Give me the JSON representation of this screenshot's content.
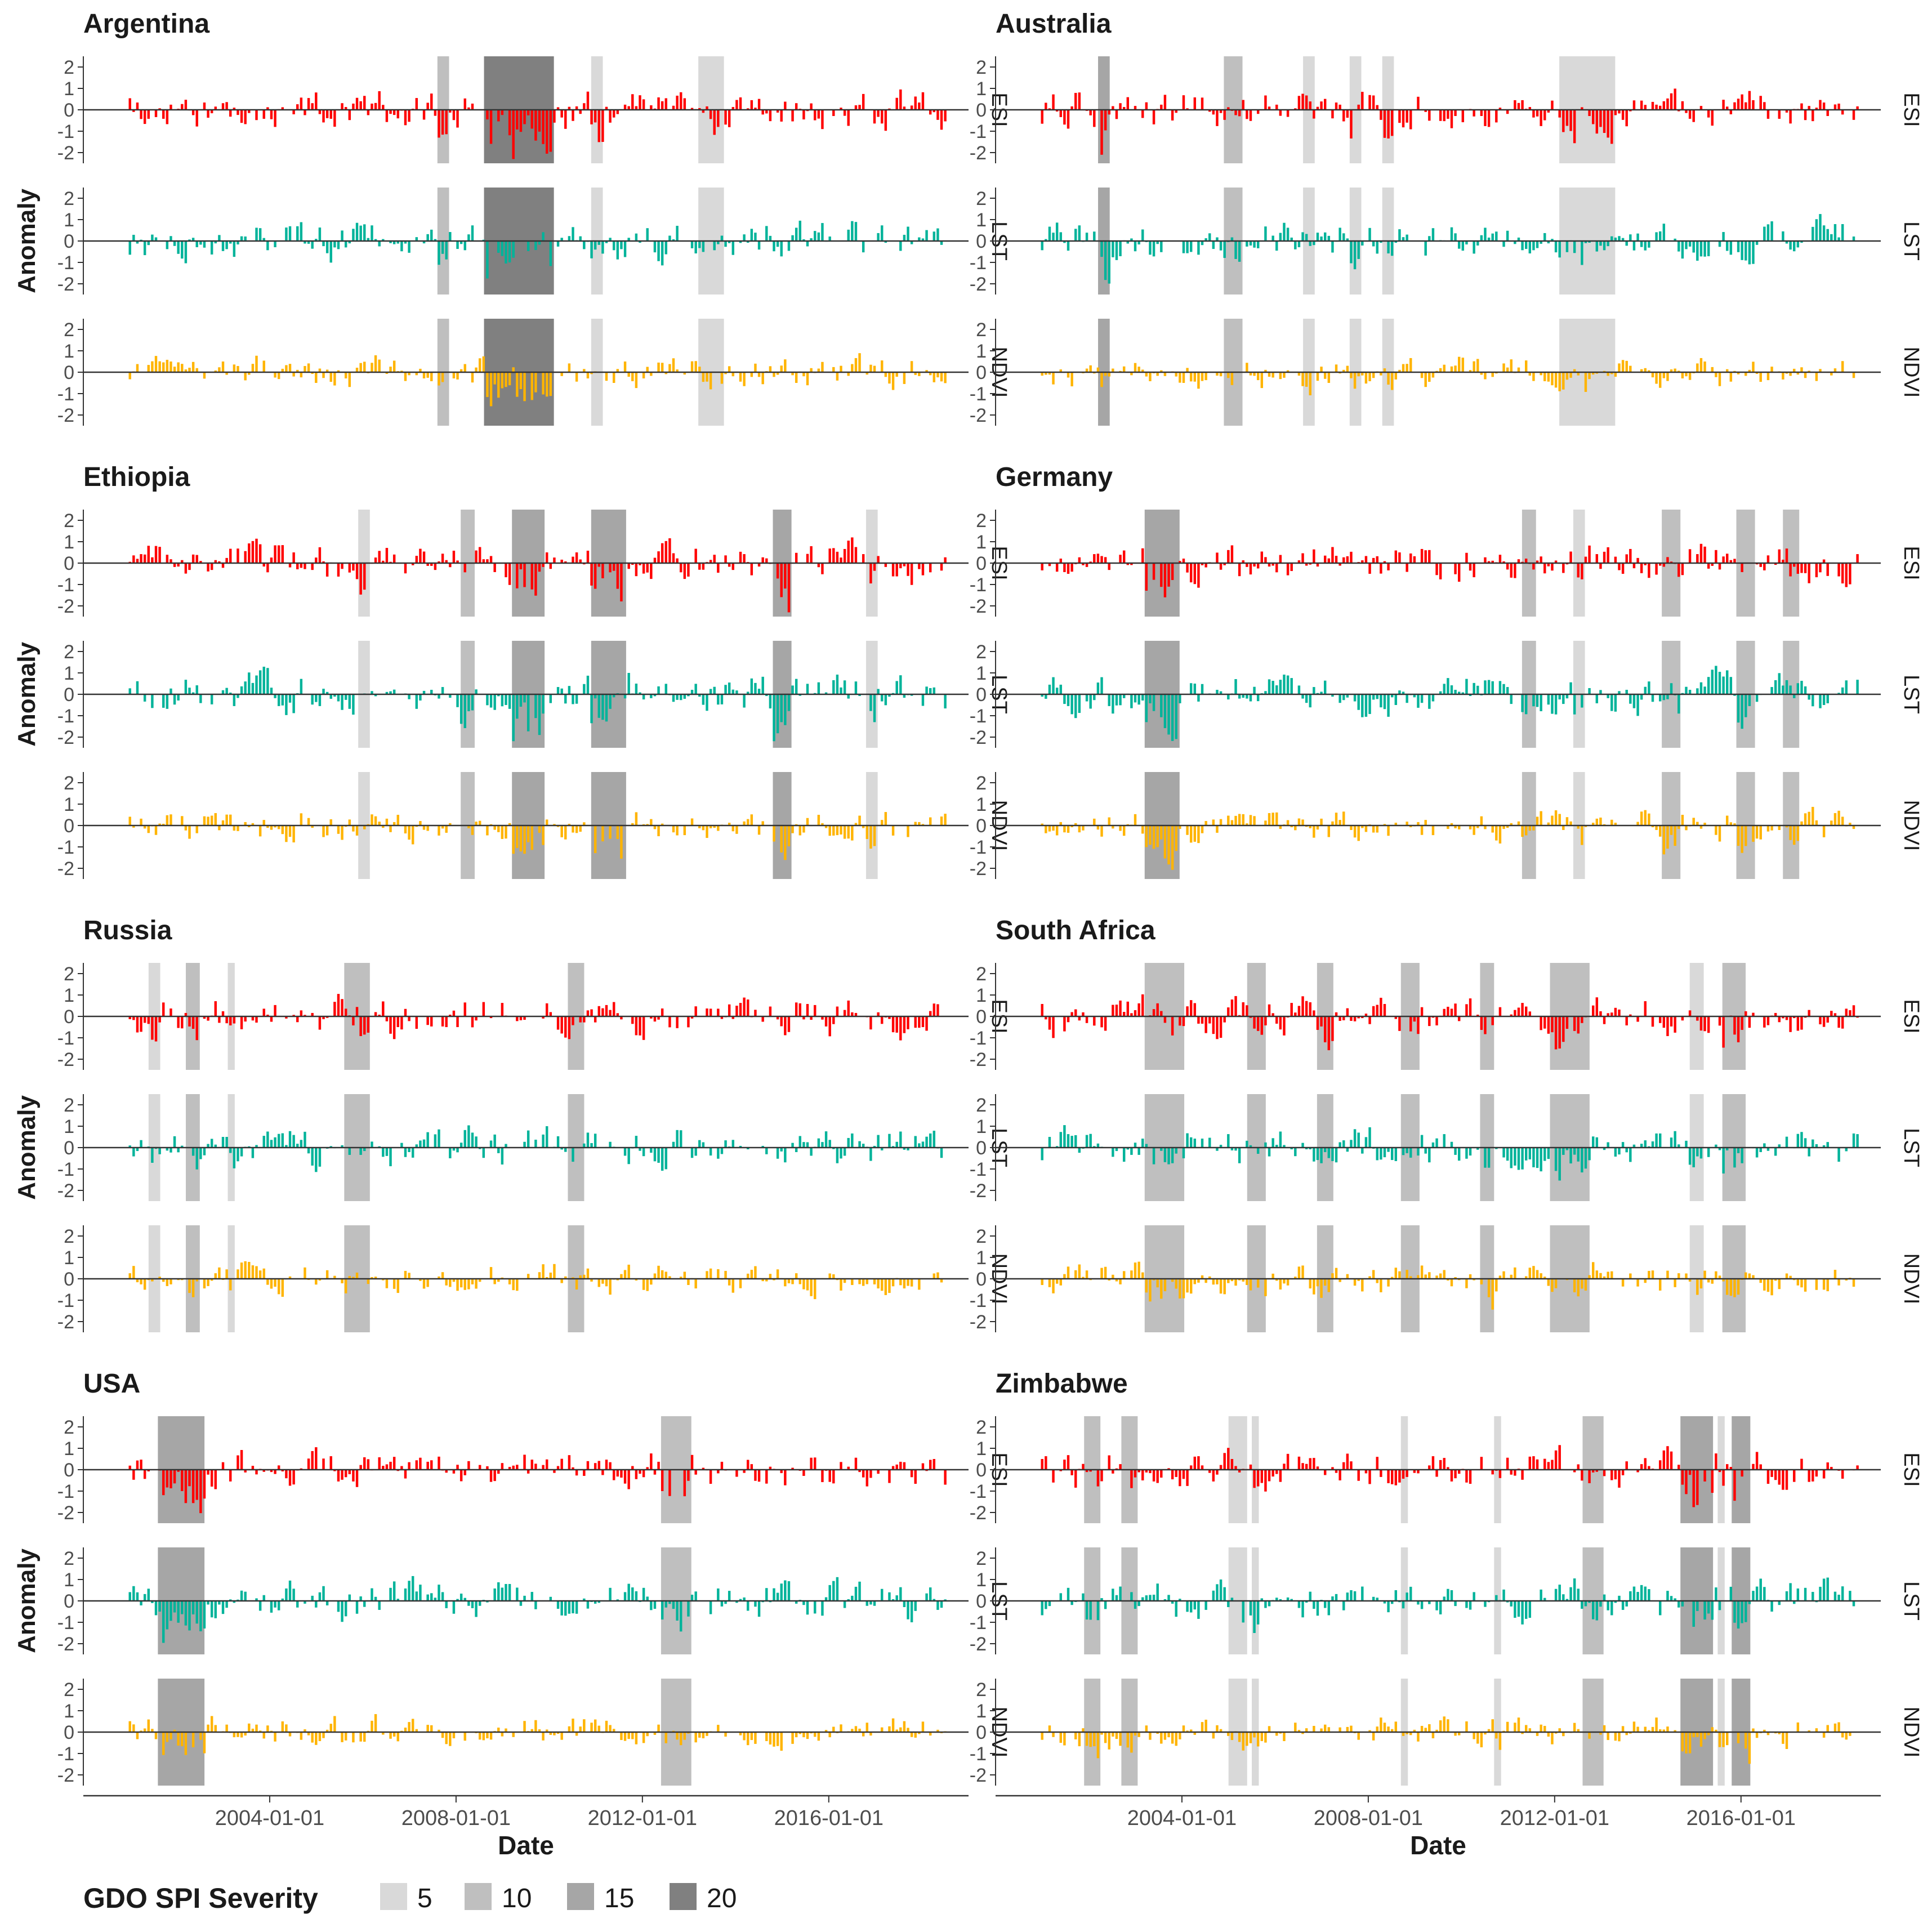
{
  "chart_data": {
    "type": "bar",
    "description_axis_y": "Anomaly",
    "x_axis_label": "Date",
    "x_ticks": [
      "2004-01-01",
      "2008-01-01",
      "2012-01-01",
      "2016-01-01"
    ],
    "x_range": [
      2000.0,
      2019.0
    ],
    "y_ticks": [
      2,
      1,
      0,
      -1,
      -2
    ],
    "y_tick_labels": [
      "2",
      "1",
      "0",
      "-1",
      "-2"
    ],
    "ylim": [
      -2.5,
      2.5
    ],
    "series": [
      {
        "name": "ESI",
        "color": "#ff0000"
      },
      {
        "name": "LST",
        "color": "#00b39a"
      },
      {
        "name": "NDVI",
        "color": "#ffb400"
      }
    ],
    "legend": {
      "title": "GDO SPI Severity",
      "position": "bottom-left",
      "items": [
        {
          "label": "5",
          "color": "#d9d9d9"
        },
        {
          "label": "10",
          "color": "#bfbfbf"
        },
        {
          "label": "15",
          "color": "#a6a6a6"
        },
        {
          "label": "20",
          "color": "#808080"
        }
      ]
    },
    "panels": [
      {
        "country": "Argentina",
        "seed": 11,
        "drought_periods": [
          {
            "start": 2007.6,
            "end": 2007.85,
            "severity": 10
          },
          {
            "start": 2008.6,
            "end": 2010.1,
            "severity": 20
          },
          {
            "start": 2010.9,
            "end": 2011.15,
            "severity": 5
          },
          {
            "start": 2013.2,
            "end": 2013.75,
            "severity": 5
          }
        ]
      },
      {
        "country": "Australia",
        "seed": 23,
        "drought_periods": [
          {
            "start": 2002.2,
            "end": 2002.45,
            "severity": 15
          },
          {
            "start": 2004.9,
            "end": 2005.3,
            "severity": 10
          },
          {
            "start": 2006.6,
            "end": 2006.85,
            "severity": 5
          },
          {
            "start": 2007.6,
            "end": 2007.85,
            "severity": 5
          },
          {
            "start": 2008.3,
            "end": 2008.55,
            "severity": 5
          },
          {
            "start": 2012.1,
            "end": 2013.3,
            "severity": 5
          }
        ]
      },
      {
        "country": "Ethiopia",
        "seed": 37,
        "drought_periods": [
          {
            "start": 2005.9,
            "end": 2006.15,
            "severity": 5
          },
          {
            "start": 2008.1,
            "end": 2008.4,
            "severity": 10
          },
          {
            "start": 2009.2,
            "end": 2009.9,
            "severity": 15
          },
          {
            "start": 2010.9,
            "end": 2011.65,
            "severity": 15
          },
          {
            "start": 2014.8,
            "end": 2015.2,
            "severity": 15
          },
          {
            "start": 2016.8,
            "end": 2017.05,
            "severity": 5
          }
        ]
      },
      {
        "country": "Germany",
        "seed": 41,
        "drought_periods": [
          {
            "start": 2003.2,
            "end": 2003.95,
            "severity": 15
          },
          {
            "start": 2011.3,
            "end": 2011.6,
            "severity": 10
          },
          {
            "start": 2012.4,
            "end": 2012.65,
            "severity": 5
          },
          {
            "start": 2014.3,
            "end": 2014.7,
            "severity": 10
          },
          {
            "start": 2015.9,
            "end": 2016.3,
            "severity": 10
          },
          {
            "start": 2016.9,
            "end": 2017.25,
            "severity": 10
          }
        ]
      },
      {
        "country": "Russia",
        "seed": 53,
        "drought_periods": [
          {
            "start": 2001.4,
            "end": 2001.65,
            "severity": 5
          },
          {
            "start": 2002.2,
            "end": 2002.5,
            "severity": 10
          },
          {
            "start": 2003.1,
            "end": 2003.25,
            "severity": 5
          },
          {
            "start": 2005.6,
            "end": 2006.15,
            "severity": 10
          },
          {
            "start": 2010.4,
            "end": 2010.75,
            "severity": 10
          }
        ]
      },
      {
        "country": "South Africa",
        "seed": 67,
        "drought_periods": [
          {
            "start": 2003.2,
            "end": 2004.05,
            "severity": 10
          },
          {
            "start": 2005.4,
            "end": 2005.8,
            "severity": 10
          },
          {
            "start": 2006.9,
            "end": 2007.25,
            "severity": 10
          },
          {
            "start": 2008.7,
            "end": 2009.1,
            "severity": 10
          },
          {
            "start": 2010.4,
            "end": 2010.7,
            "severity": 10
          },
          {
            "start": 2011.9,
            "end": 2012.75,
            "severity": 10
          },
          {
            "start": 2014.9,
            "end": 2015.2,
            "severity": 5
          },
          {
            "start": 2015.6,
            "end": 2016.1,
            "severity": 10
          }
        ]
      },
      {
        "country": "USA",
        "seed": 71,
        "drought_periods": [
          {
            "start": 2001.6,
            "end": 2002.6,
            "severity": 15
          },
          {
            "start": 2012.4,
            "end": 2013.05,
            "severity": 10
          }
        ]
      },
      {
        "country": "Zimbabwe",
        "seed": 89,
        "drought_periods": [
          {
            "start": 2001.9,
            "end": 2002.25,
            "severity": 10
          },
          {
            "start": 2002.7,
            "end": 2003.05,
            "severity": 10
          },
          {
            "start": 2005.0,
            "end": 2005.4,
            "severity": 5
          },
          {
            "start": 2005.5,
            "end": 2005.65,
            "severity": 5
          },
          {
            "start": 2008.7,
            "end": 2008.85,
            "severity": 5
          },
          {
            "start": 2010.7,
            "end": 2010.85,
            "severity": 5
          },
          {
            "start": 2012.6,
            "end": 2013.05,
            "severity": 10
          },
          {
            "start": 2014.7,
            "end": 2015.4,
            "severity": 15
          },
          {
            "start": 2015.5,
            "end": 2015.65,
            "severity": 5
          },
          {
            "start": 2015.8,
            "end": 2016.2,
            "severity": 15
          }
        ]
      }
    ]
  }
}
